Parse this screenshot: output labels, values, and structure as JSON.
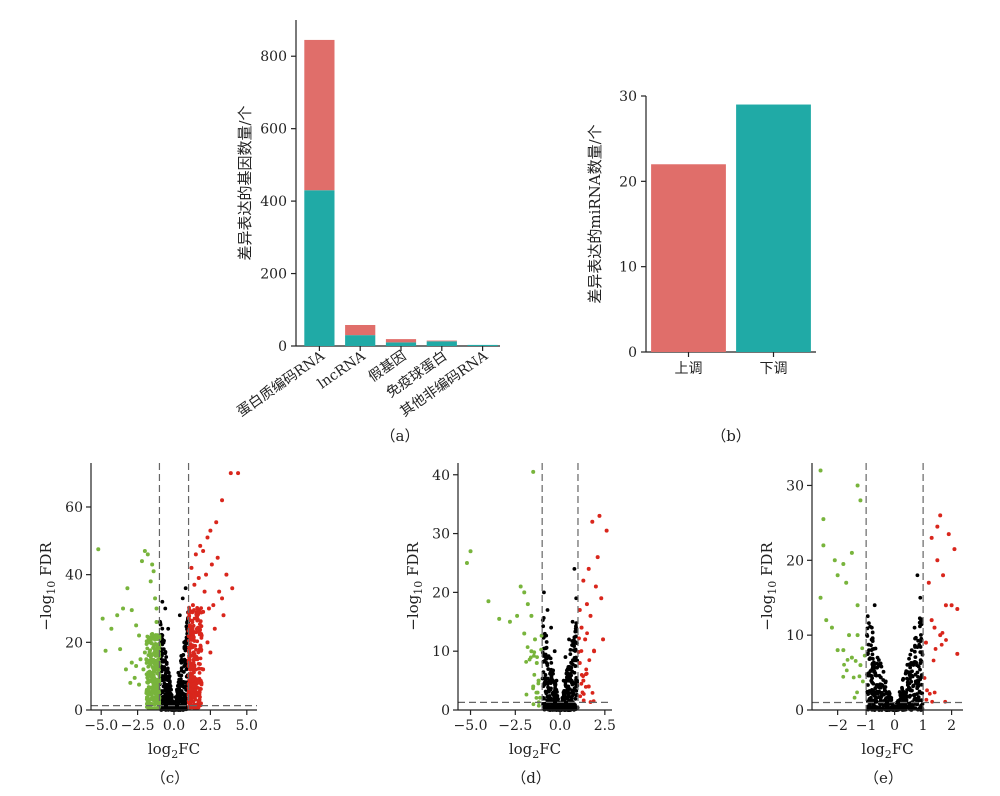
{
  "colors": {
    "red": "#e06e6a",
    "teal": "#20aaa6",
    "green": "#78b43c",
    "sigred": "#d9261c",
    "black": "#000000",
    "axis": "#222222",
    "dash": "#666666"
  },
  "chart_data": [
    {
      "id": "a",
      "type": "bar",
      "label": "（a）",
      "ylabel": "差异表达的基因数量/个",
      "ylim": [
        0,
        900
      ],
      "yticks": [
        0,
        200,
        400,
        600,
        800
      ],
      "categories": [
        "蛋白质编码RNA",
        "lncRNA",
        "假基因",
        "免疫球蛋白",
        "其他非编码RNA"
      ],
      "series": [
        {
          "color": "teal",
          "values": [
            430,
            30,
            10,
            13,
            3
          ]
        },
        {
          "color": "red",
          "values": [
            415,
            28,
            9,
            2,
            0
          ]
        }
      ]
    },
    {
      "id": "b",
      "type": "bar",
      "label": "（b）",
      "ylabel": "差异表达的miRNA数量/个",
      "ylim": [
        0,
        30
      ],
      "yticks": [
        0,
        10,
        20,
        30
      ],
      "categories": [
        "上调",
        "下调"
      ],
      "values": [
        22,
        29
      ],
      "colors": [
        "red",
        "teal"
      ]
    },
    {
      "id": "c",
      "type": "scatter",
      "label": "（c）",
      "xlabel": "log2FC",
      "ylabel": "-log10 FDR",
      "xlim": [
        -5.7,
        5.7
      ],
      "ylim": [
        0,
        73
      ],
      "xticks": [
        -5.0,
        -2.5,
        0.0,
        2.5,
        5.0
      ],
      "xtick_labels": [
        "−5.0",
        "−2.5",
        "0.0",
        "2.5",
        "5.0"
      ],
      "yticks": [
        0,
        20,
        40,
        60
      ],
      "fc_cutoff": 1,
      "fdr_line": 1.3,
      "down_points": [
        [
          -5.2,
          47.5
        ],
        [
          -4.9,
          27
        ],
        [
          -4.7,
          17.5
        ],
        [
          -4.3,
          24
        ],
        [
          -3.9,
          28
        ],
        [
          -3.5,
          30
        ],
        [
          -3.2,
          36
        ],
        [
          -2.9,
          29.5
        ],
        [
          -2.6,
          25
        ],
        [
          -2.4,
          22
        ],
        [
          -2.2,
          44
        ],
        [
          -2.0,
          47
        ],
        [
          -1.8,
          46
        ],
        [
          -1.6,
          38
        ],
        [
          -1.5,
          43
        ],
        [
          -1.4,
          41
        ],
        [
          -1.3,
          33
        ],
        [
          -1.2,
          30
        ],
        [
          -3.0,
          8
        ],
        [
          -2.7,
          9.5
        ],
        [
          -2.4,
          7.5
        ],
        [
          -2.1,
          12
        ],
        [
          -1.9,
          15
        ],
        [
          -1.7,
          20
        ],
        [
          -1.5,
          22
        ],
        [
          -1.3,
          18
        ],
        [
          -1.2,
          26
        ],
        [
          -1.1,
          12
        ],
        [
          -1.1,
          7
        ],
        [
          -1.6,
          10
        ],
        [
          -2.0,
          17
        ],
        [
          -2.3,
          15
        ],
        [
          -2.6,
          13
        ],
        [
          -1.8,
          6
        ],
        [
          -1.4,
          8
        ],
        [
          -2.9,
          14
        ],
        [
          -3.3,
          12
        ],
        [
          -3.7,
          18
        ],
        [
          -1.25,
          16
        ],
        [
          -1.15,
          21
        ]
      ],
      "up_points": [
        [
          4.4,
          70
        ],
        [
          3.9,
          70
        ],
        [
          3.3,
          62
        ],
        [
          2.9,
          55.5
        ],
        [
          2.5,
          53
        ],
        [
          2.3,
          51
        ],
        [
          2.0,
          47
        ],
        [
          1.8,
          48.5
        ],
        [
          1.5,
          46
        ],
        [
          1.2,
          42
        ],
        [
          1.4,
          37
        ],
        [
          1.7,
          39
        ],
        [
          2.2,
          40
        ],
        [
          2.6,
          43
        ],
        [
          3.0,
          45
        ],
        [
          3.6,
          40
        ],
        [
          4.0,
          36
        ],
        [
          3.3,
          33
        ],
        [
          2.7,
          31
        ],
        [
          2.4,
          30
        ],
        [
          2.0,
          29
        ],
        [
          1.6,
          28
        ],
        [
          1.3,
          31
        ],
        [
          1.1,
          25
        ],
        [
          1.2,
          19
        ],
        [
          1.5,
          23
        ],
        [
          1.9,
          22
        ],
        [
          2.3,
          20
        ],
        [
          2.8,
          24
        ],
        [
          3.4,
          28
        ],
        [
          1.1,
          12
        ],
        [
          1.3,
          9
        ],
        [
          1.6,
          15
        ],
        [
          2.0,
          12
        ],
        [
          2.5,
          17
        ],
        [
          1.2,
          6
        ],
        [
          1.4,
          4
        ],
        [
          1.8,
          8
        ],
        [
          3.1,
          35
        ],
        [
          2.1,
          35
        ]
      ],
      "ns_points": [
        [
          0.4,
          28
        ],
        [
          0.6,
          33
        ],
        [
          0.8,
          36
        ],
        [
          -0.6,
          30
        ],
        [
          -0.8,
          32
        ],
        [
          -0.4,
          24
        ],
        [
          0.9,
          26
        ],
        [
          -0.9,
          22
        ],
        [
          0.7,
          20
        ],
        [
          -0.7,
          18
        ],
        [
          0.5,
          16
        ],
        [
          -0.5,
          14
        ],
        [
          0.3,
          11
        ],
        [
          -0.3,
          10
        ],
        [
          0.2,
          6
        ],
        [
          -0.2,
          6
        ],
        [
          0.1,
          2
        ],
        [
          -0.1,
          2
        ],
        [
          0.85,
          12
        ],
        [
          -0.85,
          10
        ]
      ]
    },
    {
      "id": "d",
      "type": "scatter",
      "label": "（d）",
      "xlabel": "log2FC",
      "ylabel": "-log10 FDR",
      "xlim": [
        -5.7,
        2.9
      ],
      "ylim": [
        0,
        42
      ],
      "xticks": [
        -5.0,
        -2.5,
        0.0,
        2.5
      ],
      "xtick_labels": [
        "−5.0",
        "−2.5",
        "0.0",
        "2.5"
      ],
      "yticks": [
        0,
        10,
        20,
        30,
        40
      ],
      "fc_cutoff": 1,
      "fdr_line": 1.3,
      "down_points": [
        [
          -1.5,
          40.5
        ],
        [
          -5.0,
          27
        ],
        [
          -5.2,
          25
        ],
        [
          -4.0,
          18.5
        ],
        [
          -3.4,
          15.5
        ],
        [
          -2.2,
          21
        ],
        [
          -2.0,
          20
        ],
        [
          -1.8,
          18
        ],
        [
          -1.6,
          16
        ],
        [
          -2.4,
          16
        ],
        [
          -2.8,
          15
        ],
        [
          -2.0,
          13
        ],
        [
          -1.6,
          10
        ],
        [
          -1.4,
          12
        ],
        [
          -1.3,
          8
        ],
        [
          -1.2,
          5
        ],
        [
          -1.5,
          4
        ]
      ],
      "up_points": [
        [
          2.2,
          33
        ],
        [
          1.8,
          32
        ],
        [
          2.6,
          30.5
        ],
        [
          2.1,
          26
        ],
        [
          1.6,
          24
        ],
        [
          2.0,
          21
        ],
        [
          2.3,
          19
        ],
        [
          1.3,
          22
        ],
        [
          1.5,
          18
        ],
        [
          1.7,
          16
        ],
        [
          1.2,
          14
        ],
        [
          1.4,
          12
        ],
        [
          1.9,
          10
        ],
        [
          1.1,
          8
        ],
        [
          1.3,
          5
        ],
        [
          1.6,
          4
        ],
        [
          1.1,
          17
        ],
        [
          2.4,
          12
        ]
      ],
      "ns_points": [
        [
          -0.9,
          20
        ],
        [
          -0.7,
          17
        ],
        [
          -0.5,
          14
        ],
        [
          -0.3,
          10
        ],
        [
          0.3,
          9
        ],
        [
          0.5,
          12
        ],
        [
          0.7,
          15
        ],
        [
          0.9,
          19
        ],
        [
          -0.2,
          5
        ],
        [
          0.2,
          5
        ],
        [
          0.0,
          1
        ],
        [
          0.8,
          24
        ],
        [
          -0.8,
          9
        ],
        [
          0.6,
          7
        ]
      ]
    },
    {
      "id": "e",
      "type": "scatter",
      "label": "（e）",
      "xlabel": "log2FC",
      "ylabel": "-log10 FDR",
      "xlim": [
        -2.9,
        2.4
      ],
      "ylim": [
        0,
        33
      ],
      "xticks": [
        -2,
        -1,
        0,
        1,
        2
      ],
      "xtick_labels": [
        "−2",
        "−1",
        "0",
        "1",
        "2"
      ],
      "yticks": [
        0,
        10,
        20,
        30
      ],
      "fc_cutoff": 1,
      "fdr_line": 1.0,
      "down_points": [
        [
          -2.6,
          32
        ],
        [
          -2.5,
          25.5
        ],
        [
          -1.3,
          30
        ],
        [
          -1.2,
          28
        ],
        [
          -2.5,
          22
        ],
        [
          -2.1,
          20
        ],
        [
          -1.8,
          19.5
        ],
        [
          -1.5,
          21
        ],
        [
          -2.0,
          18
        ],
        [
          -1.7,
          17
        ],
        [
          -2.6,
          15
        ],
        [
          -1.3,
          14
        ],
        [
          -2.4,
          12
        ],
        [
          -2.2,
          11
        ],
        [
          -1.6,
          10
        ],
        [
          -1.3,
          10
        ],
        [
          -1.8,
          8
        ],
        [
          -1.5,
          7
        ],
        [
          -1.2,
          6
        ],
        [
          -2.0,
          8
        ]
      ],
      "up_points": [
        [
          1.6,
          26
        ],
        [
          1.5,
          24.5
        ],
        [
          1.3,
          23
        ],
        [
          1.9,
          23.5
        ],
        [
          2.1,
          21.5
        ],
        [
          1.5,
          20
        ],
        [
          1.7,
          18
        ],
        [
          1.2,
          17
        ],
        [
          1.8,
          14
        ],
        [
          2.0,
          14
        ],
        [
          2.2,
          13.5
        ],
        [
          1.3,
          12
        ],
        [
          1.6,
          10
        ],
        [
          1.1,
          9
        ],
        [
          2.2,
          7.5
        ],
        [
          1.4,
          11
        ]
      ],
      "ns_points": [
        [
          0.8,
          18
        ],
        [
          0.9,
          15
        ],
        [
          0.7,
          11
        ],
        [
          0.6,
          8
        ],
        [
          -0.7,
          14
        ],
        [
          -0.8,
          11
        ],
        [
          -0.6,
          7
        ],
        [
          -0.4,
          4
        ],
        [
          0.4,
          5
        ],
        [
          -0.2,
          2
        ],
        [
          0.2,
          2
        ],
        [
          0.0,
          0.5
        ],
        [
          -0.9,
          8
        ],
        [
          0.5,
          3
        ]
      ]
    }
  ]
}
